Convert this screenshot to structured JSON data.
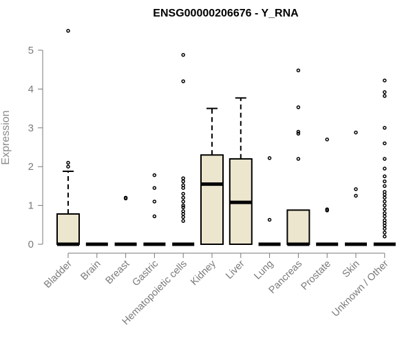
{
  "chart_data": {
    "type": "box",
    "title": "ENSG00000206676 - Y_RNA",
    "ylabel": "Expression",
    "xlabel": "",
    "ylim": [
      0,
      5.6
    ],
    "yticks": [
      0,
      1,
      2,
      3,
      4,
      5
    ],
    "grid": false,
    "legend": "none",
    "box_fill": "#ede6cf",
    "categories": [
      "Bladder",
      "Brain",
      "Breast",
      "Gastric",
      "Hematopoietic cells",
      "Kidney",
      "Liver",
      "Lung",
      "Pancreas",
      "Prostate",
      "Skin",
      "Unknown / Other"
    ],
    "boxes": [
      {
        "category": "Bladder",
        "q1": 0,
        "median": 0,
        "q3": 0.78,
        "whisker_low": 0,
        "whisker_high": 1.88,
        "outliers": [
          5.5,
          2.1,
          2.0
        ]
      },
      {
        "category": "Brain",
        "q1": 0,
        "median": 0,
        "q3": 0,
        "whisker_low": 0,
        "whisker_high": 0,
        "outliers": []
      },
      {
        "category": "Breast",
        "q1": 0,
        "median": 0,
        "q3": 0,
        "whisker_low": 0,
        "whisker_high": 0,
        "outliers": [
          1.2,
          1.18
        ]
      },
      {
        "category": "Gastric",
        "q1": 0,
        "median": 0,
        "q3": 0,
        "whisker_low": 0,
        "whisker_high": 0,
        "outliers": [
          1.78,
          1.45,
          1.1,
          0.72
        ]
      },
      {
        "category": "Hematopoietic cells",
        "q1": 0,
        "median": 0,
        "q3": 0,
        "whisker_low": 0,
        "whisker_high": 0,
        "outliers": [
          4.88,
          4.2,
          1.7,
          1.62,
          1.52,
          1.45,
          1.3,
          1.2,
          1.1,
          1.0,
          0.95,
          0.85,
          0.78,
          0.7,
          0.6
        ]
      },
      {
        "category": "Kidney",
        "q1": 0,
        "median": 1.55,
        "q3": 2.3,
        "whisker_low": 0,
        "whisker_high": 3.5,
        "outliers": []
      },
      {
        "category": "Liver",
        "q1": 0,
        "median": 1.08,
        "q3": 2.2,
        "whisker_low": 0,
        "whisker_high": 3.77,
        "outliers": []
      },
      {
        "category": "Lung",
        "q1": 0,
        "median": 0,
        "q3": 0,
        "whisker_low": 0,
        "whisker_high": 0,
        "outliers": [
          2.22,
          0.63
        ]
      },
      {
        "category": "Pancreas",
        "q1": 0,
        "median": 0,
        "q3": 0.88,
        "whisker_low": 0,
        "whisker_high": 0.88,
        "outliers": [
          4.48,
          3.53,
          2.9,
          2.85,
          2.2
        ]
      },
      {
        "category": "Prostate",
        "q1": 0,
        "median": 0,
        "q3": 0,
        "whisker_low": 0,
        "whisker_high": 0,
        "outliers": [
          2.7,
          0.9,
          0.87
        ]
      },
      {
        "category": "Skin",
        "q1": 0,
        "median": 0,
        "q3": 0,
        "whisker_low": 0,
        "whisker_high": 0,
        "outliers": [
          2.88,
          1.42,
          1.25
        ]
      },
      {
        "category": "Unknown / Other",
        "q1": 0,
        "median": 0,
        "q3": 0,
        "whisker_low": 0,
        "whisker_high": 0,
        "outliers": [
          4.22,
          3.92,
          3.82,
          3.0,
          2.6,
          2.2,
          1.95,
          1.75,
          1.62,
          1.5,
          1.35,
          1.28,
          1.2,
          1.1,
          1.0,
          0.9,
          0.8,
          0.72,
          0.62,
          0.55,
          0.48,
          0.4,
          0.3,
          0.2
        ]
      }
    ]
  }
}
